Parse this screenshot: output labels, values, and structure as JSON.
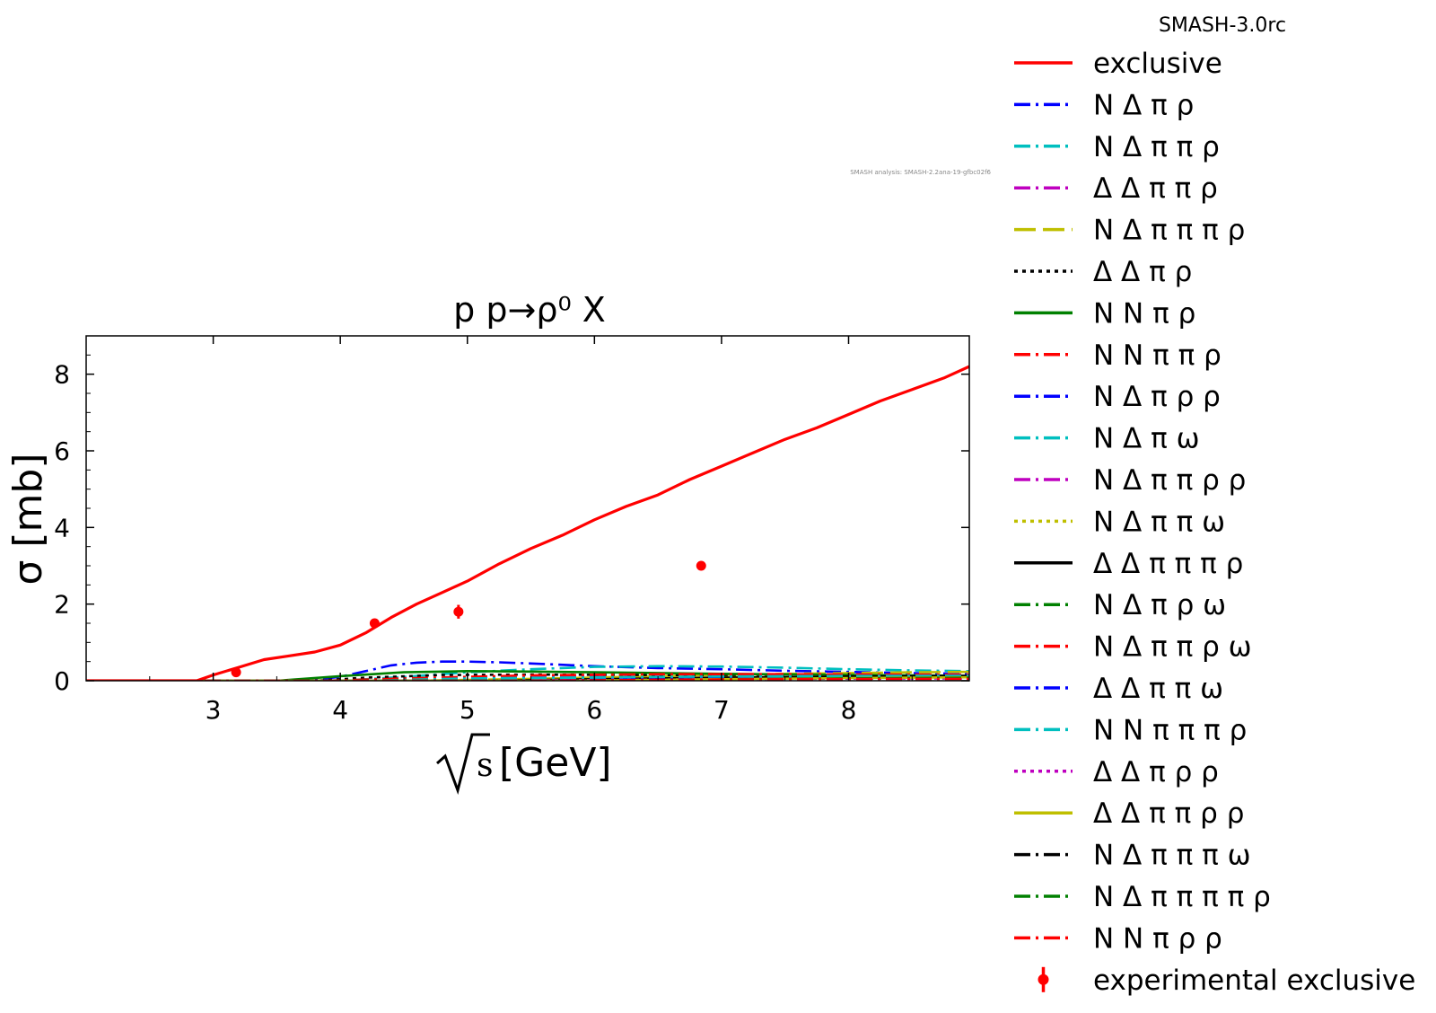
{
  "chart_data": {
    "type": "line",
    "title": "p p→ρ⁰ X",
    "watermark": "SMASH analysis: SMASH-2.2ana-19-gfbc02f6",
    "legend_title": "SMASH-3.0rc",
    "xlabel": "[GeV]",
    "xlabel_symbol": "s",
    "ylabel": "σ [mb]",
    "xlim": [
      2.0,
      8.95
    ],
    "ylim": [
      0,
      9.0
    ],
    "xticks": [
      3,
      4,
      5,
      6,
      7,
      8
    ],
    "yticks": [
      0,
      2,
      4,
      6,
      8
    ],
    "grid": false,
    "legend_placement": "outside-right",
    "series": [
      {
        "name": "exclusive",
        "color": "#ff0000",
        "style": "solid",
        "x": [
          2.0,
          2.87,
          3.0,
          3.2,
          3.4,
          3.6,
          3.8,
          4.0,
          4.2,
          4.4,
          4.6,
          4.8,
          5.0,
          5.25,
          5.5,
          5.75,
          6.0,
          6.25,
          6.5,
          6.75,
          7.0,
          7.25,
          7.5,
          7.75,
          8.0,
          8.25,
          8.5,
          8.75,
          8.95
        ],
        "y": [
          0,
          0,
          0.15,
          0.35,
          0.55,
          0.65,
          0.75,
          0.93,
          1.25,
          1.65,
          2.0,
          2.3,
          2.6,
          3.05,
          3.45,
          3.8,
          4.2,
          4.55,
          4.85,
          5.25,
          5.6,
          5.95,
          6.3,
          6.6,
          6.95,
          7.3,
          7.6,
          7.9,
          8.2
        ]
      },
      {
        "name": "N Δ π ρ",
        "color": "#0000ff",
        "style": "dashdot",
        "x": [
          2.0,
          3.6,
          3.8,
          4.0,
          4.2,
          4.4,
          4.6,
          4.8,
          5.0,
          5.25,
          5.5,
          6.0,
          6.5,
          7.0,
          7.5,
          8.0,
          8.5,
          8.95
        ],
        "y": [
          0,
          0,
          0.03,
          0.1,
          0.25,
          0.4,
          0.47,
          0.5,
          0.5,
          0.48,
          0.45,
          0.38,
          0.33,
          0.3,
          0.26,
          0.23,
          0.2,
          0.18
        ]
      },
      {
        "name": "N Δ π π ρ",
        "color": "#00bfbf",
        "style": "dashdot",
        "x": [
          2.0,
          4.0,
          4.5,
          5.0,
          5.5,
          6.0,
          6.5,
          7.0,
          7.5,
          8.0,
          8.5,
          8.95
        ],
        "y": [
          0,
          0,
          0.1,
          0.22,
          0.3,
          0.36,
          0.38,
          0.37,
          0.34,
          0.3,
          0.27,
          0.25
        ]
      },
      {
        "name": "Δ Δ π π ρ",
        "color": "#bf00bf",
        "style": "dashdot",
        "x": [
          2.0,
          4.3,
          5.0,
          6.0,
          7.0,
          8.0,
          8.95
        ],
        "y": [
          0,
          0,
          0.05,
          0.12,
          0.15,
          0.16,
          0.16
        ]
      },
      {
        "name": "N Δ π π π ρ",
        "color": "#bfbf00",
        "style": "longdash",
        "x": [
          2.0,
          4.6,
          5.5,
          6.5,
          7.5,
          8.5,
          8.95
        ],
        "y": [
          0,
          0,
          0.05,
          0.12,
          0.18,
          0.22,
          0.23
        ]
      },
      {
        "name": "Δ Δ π ρ",
        "color": "#000000",
        "style": "dotted",
        "x": [
          2.0,
          3.8,
          4.2,
          4.8,
          5.5,
          6.5,
          7.5,
          8.5,
          8.95
        ],
        "y": [
          0,
          0,
          0.08,
          0.15,
          0.16,
          0.15,
          0.13,
          0.12,
          0.11
        ]
      },
      {
        "name": "N N π ρ",
        "color": "#008000",
        "style": "solid",
        "x": [
          2.0,
          3.5,
          4.0,
          4.5,
          5.0,
          5.5,
          6.0,
          7.0,
          8.0,
          8.95
        ],
        "y": [
          0,
          0,
          0.12,
          0.22,
          0.25,
          0.24,
          0.22,
          0.18,
          0.15,
          0.13
        ]
      },
      {
        "name": "N N π π ρ",
        "color": "#ff0000",
        "style": "dashdot",
        "x": [
          2.0,
          3.9,
          4.5,
          5.5,
          6.5,
          7.5,
          8.5,
          8.95
        ],
        "y": [
          0,
          0,
          0.06,
          0.14,
          0.17,
          0.17,
          0.16,
          0.15
        ]
      },
      {
        "name": "N Δ π ρ ρ",
        "color": "#0000ff",
        "style": "dashdot",
        "x": [
          2.0,
          4.8,
          5.5,
          6.5,
          7.5,
          8.5,
          8.95
        ],
        "y": [
          0,
          0,
          0.03,
          0.07,
          0.09,
          0.1,
          0.1
        ]
      },
      {
        "name": "N Δ π ω",
        "color": "#00bfbf",
        "style": "dashdot",
        "x": [
          2.0,
          4.2,
          5.0,
          6.0,
          7.0,
          8.0,
          8.95
        ],
        "y": [
          0,
          0,
          0.06,
          0.09,
          0.1,
          0.1,
          0.09
        ]
      },
      {
        "name": "N Δ π π ρ ρ",
        "color": "#bf00bf",
        "style": "dashdot",
        "x": [
          2.0,
          5.4,
          6.5,
          7.5,
          8.5,
          8.95
        ],
        "y": [
          0,
          0,
          0.03,
          0.06,
          0.08,
          0.09
        ]
      },
      {
        "name": "N Δ π π ω",
        "color": "#bfbf00",
        "style": "dotted",
        "x": [
          2.0,
          4.7,
          5.5,
          6.5,
          7.5,
          8.5,
          8.95
        ],
        "y": [
          0,
          0,
          0.04,
          0.08,
          0.1,
          0.11,
          0.11
        ]
      },
      {
        "name": "Δ Δ π π π ρ",
        "color": "#000000",
        "style": "solid",
        "x": [
          2.0,
          5.1,
          6.0,
          7.0,
          8.0,
          8.95
        ],
        "y": [
          0,
          0,
          0.04,
          0.08,
          0.11,
          0.13
        ]
      },
      {
        "name": "N Δ π ρ ω",
        "color": "#008000",
        "style": "dashdot",
        "x": [
          2.0,
          5.5,
          6.5,
          7.5,
          8.5,
          8.95
        ],
        "y": [
          0,
          0,
          0.02,
          0.05,
          0.07,
          0.07
        ]
      },
      {
        "name": "N Δ π π ρ ω",
        "color": "#ff0000",
        "style": "dashdot",
        "x": [
          2.0,
          6.0,
          7.0,
          8.0,
          8.95
        ],
        "y": [
          0,
          0,
          0.03,
          0.05,
          0.06
        ]
      },
      {
        "name": "Δ Δ π π ω",
        "color": "#0000ff",
        "style": "dashdot",
        "x": [
          2.0,
          5.0,
          6.0,
          7.0,
          8.0,
          8.95
        ],
        "y": [
          0,
          0,
          0.04,
          0.06,
          0.07,
          0.07
        ]
      },
      {
        "name": "N N π π π ρ",
        "color": "#00bfbf",
        "style": "dashdot",
        "x": [
          2.0,
          4.4,
          5.5,
          6.5,
          7.5,
          8.5,
          8.95
        ],
        "y": [
          0,
          0,
          0.06,
          0.1,
          0.12,
          0.13,
          0.13
        ]
      },
      {
        "name": "Δ Δ π ρ ρ",
        "color": "#bf00bf",
        "style": "dotted",
        "x": [
          2.0,
          5.2,
          6.5,
          7.5,
          8.5,
          8.95
        ],
        "y": [
          0,
          0,
          0.03,
          0.05,
          0.06,
          0.06
        ]
      },
      {
        "name": "Δ Δ π π ρ ρ",
        "color": "#bfbf00",
        "style": "solid",
        "x": [
          2.0,
          5.8,
          7.0,
          8.0,
          8.95
        ],
        "y": [
          0,
          0,
          0.04,
          0.07,
          0.09
        ]
      },
      {
        "name": "N Δ π π π ω",
        "color": "#000000",
        "style": "dashdot",
        "x": [
          2.0,
          5.6,
          6.5,
          7.5,
          8.5,
          8.95
        ],
        "y": [
          0,
          0,
          0.02,
          0.04,
          0.05,
          0.05
        ]
      },
      {
        "name": "N Δ π π π π ρ",
        "color": "#008000",
        "style": "dashdot",
        "x": [
          2.0,
          6.2,
          7.0,
          8.0,
          8.95
        ],
        "y": [
          0,
          0,
          0.03,
          0.06,
          0.08
        ]
      },
      {
        "name": "N N π ρ ρ",
        "color": "#ff0000",
        "style": "dashdot",
        "x": [
          2.0,
          5.3,
          6.5,
          7.5,
          8.5,
          8.95
        ],
        "y": [
          0,
          0,
          0.02,
          0.04,
          0.05,
          0.05
        ]
      }
    ],
    "experimental": {
      "name": "experimental exclusive",
      "color": "#ff0000",
      "points": [
        {
          "x": 3.18,
          "y": 0.22,
          "err": 0.0
        },
        {
          "x": 4.27,
          "y": 1.5,
          "err": 0.0
        },
        {
          "x": 4.93,
          "y": 1.8,
          "err": 0.18
        },
        {
          "x": 6.84,
          "y": 3.0,
          "err": 0.0
        }
      ]
    }
  }
}
